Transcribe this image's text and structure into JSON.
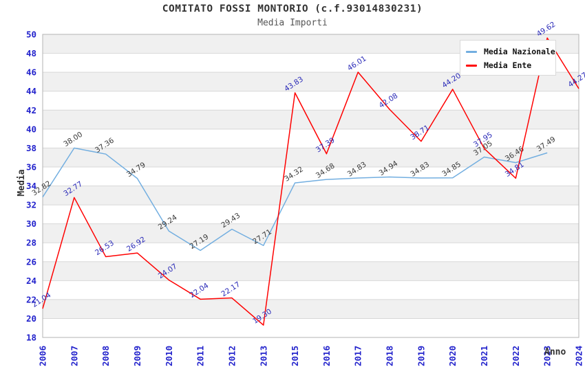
{
  "header": {
    "title": "COMITATO FOSSI MONTORIO (c.f.93014830231)",
    "subtitle": "Media Importi"
  },
  "colors": {
    "axis_tick": "#2222cc",
    "grid_band": "#f0f0f0",
    "grid_line": "#d8d8d8",
    "plot_border": "#b3b3b3",
    "title_text": "#333333",
    "subtitle_text": "#555555"
  },
  "chart_data": {
    "type": "line",
    "title": "COMITATO FOSSI MONTORIO (c.f.93014830231)",
    "subtitle": "Media Importi",
    "xlabel": "Anno",
    "ylabel": "Media",
    "ylim": [
      18,
      50
    ],
    "ytick_step": 2,
    "grid": "horizontal-bands",
    "legend_position": "top-right",
    "categories": [
      "2006",
      "2007",
      "2008",
      "2009",
      "2010",
      "2011",
      "2012",
      "2013",
      "2015",
      "2016",
      "2017",
      "2018",
      "2019",
      "2020",
      "2021",
      "2022",
      "2023",
      "2024"
    ],
    "series": [
      {
        "name": "Media Nazionale",
        "color": "#72aee0",
        "label_color": "#3a3a3a",
        "values": [
          32.82,
          38.0,
          37.36,
          34.79,
          29.24,
          27.19,
          29.43,
          27.71,
          34.32,
          34.68,
          34.83,
          34.94,
          34.83,
          34.85,
          37.05,
          36.46,
          37.49,
          null
        ]
      },
      {
        "name": "Media Ente",
        "color": "#ff0000",
        "label_color": "#2a2ab8",
        "values": [
          21.04,
          32.77,
          26.53,
          26.92,
          24.07,
          22.04,
          22.17,
          19.3,
          43.83,
          37.39,
          46.01,
          42.08,
          38.71,
          44.2,
          37.95,
          34.81,
          49.62,
          44.27
        ]
      }
    ]
  }
}
